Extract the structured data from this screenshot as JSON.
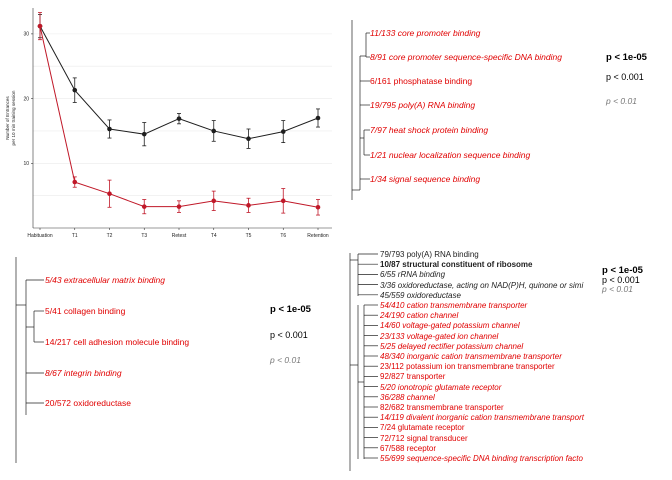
{
  "colors": {
    "red": "#e00000",
    "black": "#1e1e1e",
    "darkred": "#c01828",
    "gray": "#777777",
    "tree": "#222222"
  },
  "chart_data": [
    {
      "type": "line",
      "title": "",
      "xlabel": "",
      "ylabel": "Number of Entrances per 10 min training session",
      "categories": [
        "Habituation",
        "T1",
        "T2",
        "T3",
        "Retest",
        "T4",
        "T5",
        "T6",
        "Retention"
      ],
      "ylim": [
        0,
        34
      ],
      "yticks": [
        10,
        20,
        30
      ],
      "grid": true,
      "series": [
        {
          "color": "#1e1e1e",
          "values": [
            31.2,
            21.3,
            15.3,
            14.5,
            16.9,
            15.0,
            13.8,
            14.9,
            17.0
          ],
          "errors": [
            1.8,
            1.9,
            1.4,
            1.8,
            0.8,
            1.6,
            1.5,
            1.7,
            1.4
          ]
        },
        {
          "color": "#c01828",
          "values": [
            31.2,
            7.1,
            5.3,
            3.3,
            3.3,
            4.2,
            3.5,
            4.2,
            3.2
          ],
          "errors": [
            2.1,
            0.8,
            2.1,
            1.1,
            0.9,
            1.5,
            1.1,
            1.9,
            1.2
          ]
        }
      ]
    },
    {
      "type": "table",
      "terms": [
        {
          "text": "11/133 core promoter binding",
          "color": "#e00000",
          "italic": true
        },
        {
          "text": "8/91 core promoter sequence-specific DNA binding",
          "color": "#e00000",
          "italic": true
        },
        {
          "text": "6/161 phosphatase binding",
          "color": "#e00000",
          "italic": false
        },
        {
          "text": "19/795 poly(A) RNA binding",
          "color": "#e00000",
          "italic": true
        },
        {
          "text": "7/97 heat shock protein binding",
          "color": "#e00000",
          "italic": true
        },
        {
          "text": "1/21 nuclear localization sequence binding",
          "color": "#e00000",
          "italic": true
        },
        {
          "text": "1/34 signal sequence binding",
          "color": "#e00000",
          "italic": true
        }
      ],
      "legend": [
        "p < 1e-05",
        "p < 0.001",
        "p < 0.01"
      ]
    },
    {
      "type": "table",
      "terms": [
        {
          "text": "5/43 extracellular matrix binding",
          "color": "#e00000",
          "italic": true
        },
        {
          "text": "5/41 collagen binding",
          "color": "#e00000",
          "italic": false
        },
        {
          "text": "14/217 cell adhesion molecule binding",
          "color": "#e00000",
          "italic": false
        },
        {
          "text": "8/67 integrin binding",
          "color": "#e00000",
          "italic": true
        },
        {
          "text": "20/572 oxidoreductase",
          "color": "#e00000",
          "italic": false
        }
      ],
      "legend": [
        "p < 1e-05",
        "p < 0.001",
        "p < 0.01"
      ]
    },
    {
      "type": "table",
      "terms": [
        {
          "text": "79/793 poly(A) RNA binding",
          "color": "#1e1e1e",
          "italic": false,
          "bold": false
        },
        {
          "text": "10/87 structural constituent of ribosome",
          "color": "#1e1e1e",
          "italic": false,
          "bold": true
        },
        {
          "text": "6/55 rRNA binding",
          "color": "#1e1e1e",
          "italic": true,
          "bold": false
        },
        {
          "text": "3/36 oxidoreductase, acting on NAD(P)H, quinone or simi",
          "color": "#1e1e1e",
          "italic": true,
          "bold": false
        },
        {
          "text": "45/559 oxidoreductase",
          "color": "#1e1e1e",
          "italic": true,
          "bold": false
        },
        {
          "text": "54/410 cation transmembrane transporter",
          "color": "#e00000",
          "italic": true
        },
        {
          "text": "24/190 cation channel",
          "color": "#e00000",
          "italic": true
        },
        {
          "text": "14/60 voltage-gated potassium channel",
          "color": "#e00000",
          "italic": true
        },
        {
          "text": "23/133 voltage-gated ion channel",
          "color": "#e00000",
          "italic": true
        },
        {
          "text": "5/25 delayed rectifier potassium channel",
          "color": "#e00000",
          "italic": true
        },
        {
          "text": "48/340 inorganic cation transmembrane transporter",
          "color": "#e00000",
          "italic": true
        },
        {
          "text": "23/112 potassium ion transmembrane transporter",
          "color": "#e00000",
          "italic": false
        },
        {
          "text": "92/827 transporter",
          "color": "#e00000",
          "italic": false
        },
        {
          "text": "5/20 ionotropic glutamate receptor",
          "color": "#e00000",
          "italic": true
        },
        {
          "text": "36/288 channel",
          "color": "#e00000",
          "italic": true
        },
        {
          "text": "82/682 transmembrane transporter",
          "color": "#e00000",
          "italic": false
        },
        {
          "text": "14/119 divalent inorganic cation transmembrane transport",
          "color": "#e00000",
          "italic": true
        },
        {
          "text": "7/24 glutamate receptor",
          "color": "#e00000",
          "italic": false
        },
        {
          "text": "72/712 signal transducer",
          "color": "#e00000",
          "italic": false
        },
        {
          "text": "67/588 receptor",
          "color": "#e00000",
          "italic": false
        },
        {
          "text": "55/699 sequence-specific DNA binding transcription facto",
          "color": "#e00000",
          "italic": true
        }
      ],
      "legend": [
        "p < 1e-05",
        "p < 0.001",
        "p < 0.01"
      ]
    }
  ]
}
